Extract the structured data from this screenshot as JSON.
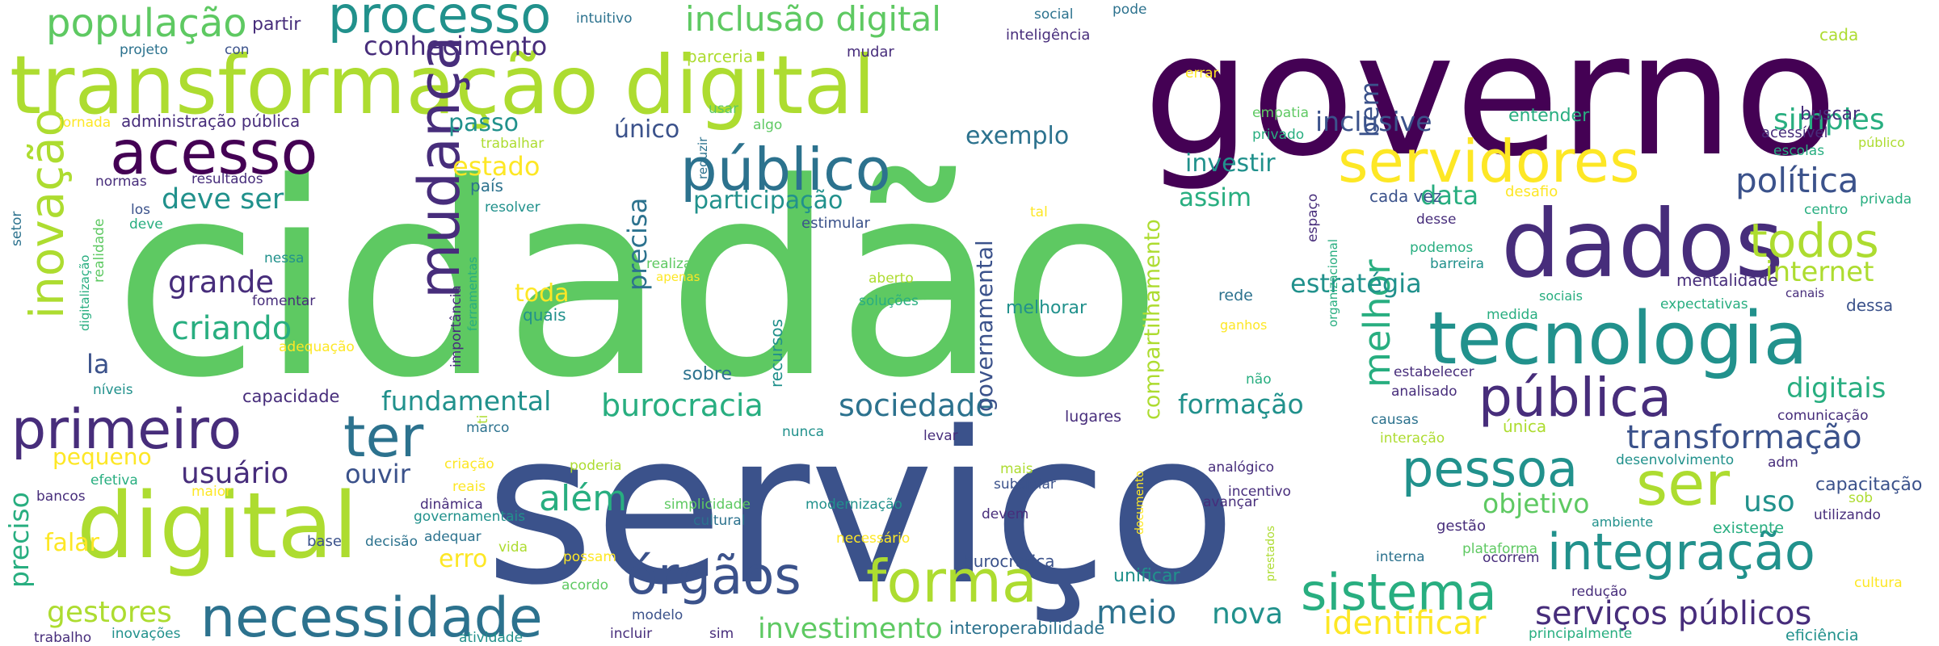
{
  "palette": {
    "dv": "#440154",
    "pu": "#472d7b",
    "in": "#3b528b",
    "bl": "#2c728e",
    "tl": "#21918c",
    "gr": "#28ae80",
    "lg": "#5ec962",
    "yg": "#addc30",
    "ye": "#fde725"
  },
  "words": [
    {
      "text": "cidadão",
      "color": "lg"
    },
    {
      "text": "serviço",
      "color": "in"
    },
    {
      "text": "governo",
      "color": "dv"
    },
    {
      "text": "transformação digital",
      "color": "yg"
    },
    {
      "text": "dados",
      "color": "pu"
    },
    {
      "text": "digital",
      "color": "yg"
    },
    {
      "text": "tecnologia",
      "color": "tl"
    },
    {
      "text": "público",
      "color": "bl"
    },
    {
      "text": "servidores",
      "color": "ye"
    },
    {
      "text": "necessidade",
      "color": "bl"
    },
    {
      "text": "forma",
      "color": "yg"
    },
    {
      "text": "mudança",
      "color": "pu"
    },
    {
      "text": "primeiro",
      "color": "pu"
    },
    {
      "text": "acesso",
      "color": "dv"
    },
    {
      "text": "órgãos",
      "color": "in"
    },
    {
      "text": "pública",
      "color": "pu"
    },
    {
      "text": "integração",
      "color": "tl"
    },
    {
      "text": "inovação",
      "color": "yg"
    },
    {
      "text": "processo",
      "color": "tl"
    },
    {
      "text": "ter",
      "color": "bl"
    },
    {
      "text": "pessoa",
      "color": "tl"
    },
    {
      "text": "sistema",
      "color": "gr"
    },
    {
      "text": "ser",
      "color": "yg"
    },
    {
      "text": "todos",
      "color": "yg"
    },
    {
      "text": "melhor",
      "color": "gr"
    },
    {
      "text": "população",
      "color": "lg"
    },
    {
      "text": "inclusão digital",
      "color": "lg"
    },
    {
      "text": "criando",
      "color": "gr"
    },
    {
      "text": "burocracia",
      "color": "gr"
    },
    {
      "text": "sociedade",
      "color": "bl"
    },
    {
      "text": "transformação",
      "color": "in"
    },
    {
      "text": "serviços públicos",
      "color": "pu"
    },
    {
      "text": "identificar",
      "color": "ye"
    },
    {
      "text": "política",
      "color": "in"
    },
    {
      "text": "além",
      "color": "gr"
    },
    {
      "text": "meio",
      "color": "bl"
    },
    {
      "text": "grande",
      "color": "pu"
    },
    {
      "text": "usuário",
      "color": "pu"
    },
    {
      "text": "preciso",
      "color": "gr"
    },
    {
      "text": "conhecimento",
      "color": "pu"
    },
    {
      "text": "fundamental",
      "color": "tl"
    },
    {
      "text": "investimento",
      "color": "lg"
    },
    {
      "text": "gestores",
      "color": "yg"
    },
    {
      "text": "nova",
      "color": "tl"
    },
    {
      "text": "participação",
      "color": "tl"
    },
    {
      "text": "deve ser",
      "color": "tl"
    },
    {
      "text": "estratégia",
      "color": "tl"
    },
    {
      "text": "inclusive",
      "color": "in"
    },
    {
      "text": "formação",
      "color": "tl"
    },
    {
      "text": "simples",
      "color": "gr"
    },
    {
      "text": "internet",
      "color": "yg"
    },
    {
      "text": "digitais",
      "color": "gr"
    },
    {
      "text": "objetivo",
      "color": "lg"
    },
    {
      "text": "uso",
      "color": "tl"
    },
    {
      "text": "compartilhamento",
      "color": "yg"
    },
    {
      "text": "governamental",
      "color": "in"
    },
    {
      "text": "precisa",
      "color": "bl"
    },
    {
      "text": "passo",
      "color": "tl"
    },
    {
      "text": "exemplo",
      "color": "bl"
    },
    {
      "text": "único",
      "color": "in"
    },
    {
      "text": "estado",
      "color": "ye"
    },
    {
      "text": "bem",
      "color": "in"
    },
    {
      "text": "investir",
      "color": "tl"
    },
    {
      "text": "assim",
      "color": "gr"
    },
    {
      "text": "data",
      "color": "gr"
    },
    {
      "text": "ouvir",
      "color": "in"
    },
    {
      "text": "falar",
      "color": "ye"
    },
    {
      "text": "erro",
      "color": "ye"
    },
    {
      "text": "toda",
      "color": "ye"
    },
    {
      "text": "pequeno",
      "color": "ye"
    },
    {
      "text": "la",
      "color": "in"
    },
    {
      "text": "capacitação",
      "color": "in"
    },
    {
      "text": "unificar",
      "color": "tl"
    },
    {
      "text": "quais",
      "color": "tl"
    },
    {
      "text": "sobre",
      "color": "bl"
    },
    {
      "text": "recursos",
      "color": "tl"
    },
    {
      "text": "melhorar",
      "color": "tl"
    },
    {
      "text": "mentalidade",
      "color": "pu"
    },
    {
      "text": "cada vez",
      "color": "in"
    },
    {
      "text": "buscar",
      "color": "pu"
    },
    {
      "text": "entender",
      "color": "gr"
    },
    {
      "text": "acessível",
      "color": "pu"
    },
    {
      "text": "cada",
      "color": "yg"
    },
    {
      "text": "capacidade",
      "color": "pu"
    },
    {
      "text": "administração pública",
      "color": "pu"
    },
    {
      "text": "partir",
      "color": "pu"
    },
    {
      "text": "intuitivo",
      "color": "bl"
    },
    {
      "text": "social",
      "color": "bl"
    },
    {
      "text": "pode",
      "color": "bl"
    },
    {
      "text": "inteligência",
      "color": "pu"
    },
    {
      "text": "mudar",
      "color": "pu"
    },
    {
      "text": "parceria",
      "color": "yg"
    },
    {
      "text": "projeto",
      "color": "bl"
    },
    {
      "text": "con",
      "color": "in"
    },
    {
      "text": "jornada",
      "color": "ye"
    },
    {
      "text": "usar",
      "color": "lg"
    },
    {
      "text": "algo",
      "color": "lg"
    },
    {
      "text": "errar",
      "color": "ye"
    },
    {
      "text": "empatia",
      "color": "lg"
    },
    {
      "text": "privado",
      "color": "gr"
    },
    {
      "text": "escolas",
      "color": "gr"
    },
    {
      "text": "público",
      "color": "yg"
    },
    {
      "text": "trabalhar",
      "color": "yg"
    },
    {
      "text": "resultados",
      "color": "pu"
    },
    {
      "text": "normas",
      "color": "pu"
    },
    {
      "text": "país",
      "color": "bl"
    },
    {
      "text": "resolver",
      "color": "tl"
    },
    {
      "text": "reduzir",
      "color": "bl"
    },
    {
      "text": "estimular",
      "color": "in"
    },
    {
      "text": "desafio",
      "color": "ye"
    },
    {
      "text": "desse",
      "color": "pu"
    },
    {
      "text": "centro",
      "color": "gr"
    },
    {
      "text": "privada",
      "color": "gr"
    },
    {
      "text": "los",
      "color": "in"
    },
    {
      "text": "deve",
      "color": "gr"
    },
    {
      "text": "setor",
      "color": "bl"
    },
    {
      "text": "realidade",
      "color": "lg"
    },
    {
      "text": "digitalização",
      "color": "gr"
    },
    {
      "text": "nessa",
      "color": "tl"
    },
    {
      "text": "fomentar",
      "color": "pu"
    },
    {
      "text": "adequação",
      "color": "ye"
    },
    {
      "text": "importância",
      "color": "pu"
    },
    {
      "text": "ferramentas",
      "color": "gr"
    },
    {
      "text": "realizar",
      "color": "lg"
    },
    {
      "text": "apenas",
      "color": "ye"
    },
    {
      "text": "aberto",
      "color": "yg"
    },
    {
      "text": "soluções",
      "color": "gr"
    },
    {
      "text": "tal",
      "color": "ye"
    },
    {
      "text": "espaço",
      "color": "pu"
    },
    {
      "text": "organizacional",
      "color": "gr"
    },
    {
      "text": "rede",
      "color": "bl"
    },
    {
      "text": "ganhos",
      "color": "ye"
    },
    {
      "text": "podemos",
      "color": "gr"
    },
    {
      "text": "barreira",
      "color": "tl"
    },
    {
      "text": "sociais",
      "color": "gr"
    },
    {
      "text": "medida",
      "color": "gr"
    },
    {
      "text": "expectativas",
      "color": "gr"
    },
    {
      "text": "canais",
      "color": "pu"
    },
    {
      "text": "dessa",
      "color": "in"
    },
    {
      "text": "não",
      "color": "gr"
    },
    {
      "text": "estabelecer",
      "color": "pu"
    },
    {
      "text": "analisado",
      "color": "pu"
    },
    {
      "text": "única",
      "color": "yg"
    },
    {
      "text": "comunicação",
      "color": "pu"
    },
    {
      "text": "causas",
      "color": "bl"
    },
    {
      "text": "interação",
      "color": "yg"
    },
    {
      "text": "adm",
      "color": "pu"
    },
    {
      "text": "desenvolvimento",
      "color": "tl"
    },
    {
      "text": "níveis",
      "color": "tl"
    },
    {
      "text": "marco",
      "color": "bl"
    },
    {
      "text": "ti",
      "color": "yg"
    },
    {
      "text": "criação",
      "color": "ye"
    },
    {
      "text": "poderia",
      "color": "yg"
    },
    {
      "text": "mais",
      "color": "yg"
    },
    {
      "text": "subsidiar",
      "color": "in"
    },
    {
      "text": "lugares",
      "color": "pu"
    },
    {
      "text": "levar",
      "color": "pu"
    },
    {
      "text": "nunca",
      "color": "tl"
    },
    {
      "text": "efetiva",
      "color": "gr"
    },
    {
      "text": "bancos",
      "color": "pu"
    },
    {
      "text": "maior",
      "color": "ye"
    },
    {
      "text": "reais",
      "color": "ye"
    },
    {
      "text": "dinâmica",
      "color": "pu"
    },
    {
      "text": "governamentais",
      "color": "tl"
    },
    {
      "text": "adequar",
      "color": "bl"
    },
    {
      "text": "simplicidade",
      "color": "lg"
    },
    {
      "text": "cultural",
      "color": "bl"
    },
    {
      "text": "modernização",
      "color": "tl"
    },
    {
      "text": "devem",
      "color": "pu"
    },
    {
      "text": "necessário",
      "color": "ye"
    },
    {
      "text": "documento",
      "color": "ye"
    },
    {
      "text": "analógico",
      "color": "pu"
    },
    {
      "text": "incentivo",
      "color": "pu"
    },
    {
      "text": "avançar",
      "color": "pu"
    },
    {
      "text": "gestão",
      "color": "pu"
    },
    {
      "text": "ambiente",
      "color": "tl"
    },
    {
      "text": "utilizando",
      "color": "pu"
    },
    {
      "text": "sob",
      "color": "yg"
    },
    {
      "text": "existente",
      "color": "gr"
    },
    {
      "text": "interna",
      "color": "bl"
    },
    {
      "text": "plataforma",
      "color": "lg"
    },
    {
      "text": "ocorrem",
      "color": "pu"
    },
    {
      "text": "redução",
      "color": "pu"
    },
    {
      "text": "cultura",
      "color": "ye"
    },
    {
      "text": "eficiência",
      "color": "tl"
    },
    {
      "text": "principalmente",
      "color": "gr"
    },
    {
      "text": "base",
      "color": "in"
    },
    {
      "text": "decisão",
      "color": "bl"
    },
    {
      "text": "vida",
      "color": "yg"
    },
    {
      "text": "possam",
      "color": "ye"
    },
    {
      "text": "acordo",
      "color": "lg"
    },
    {
      "text": "burocrática",
      "color": "in"
    },
    {
      "text": "prestados",
      "color": "yg"
    },
    {
      "text": "modelo",
      "color": "in"
    },
    {
      "text": "incluir",
      "color": "pu"
    },
    {
      "text": "sim",
      "color": "pu"
    },
    {
      "text": "trabalho",
      "color": "pu"
    },
    {
      "text": "inovações",
      "color": "tl"
    },
    {
      "text": "atividade",
      "color": "tl"
    },
    {
      "text": "interoperabilidade",
      "color": "bl"
    }
  ]
}
